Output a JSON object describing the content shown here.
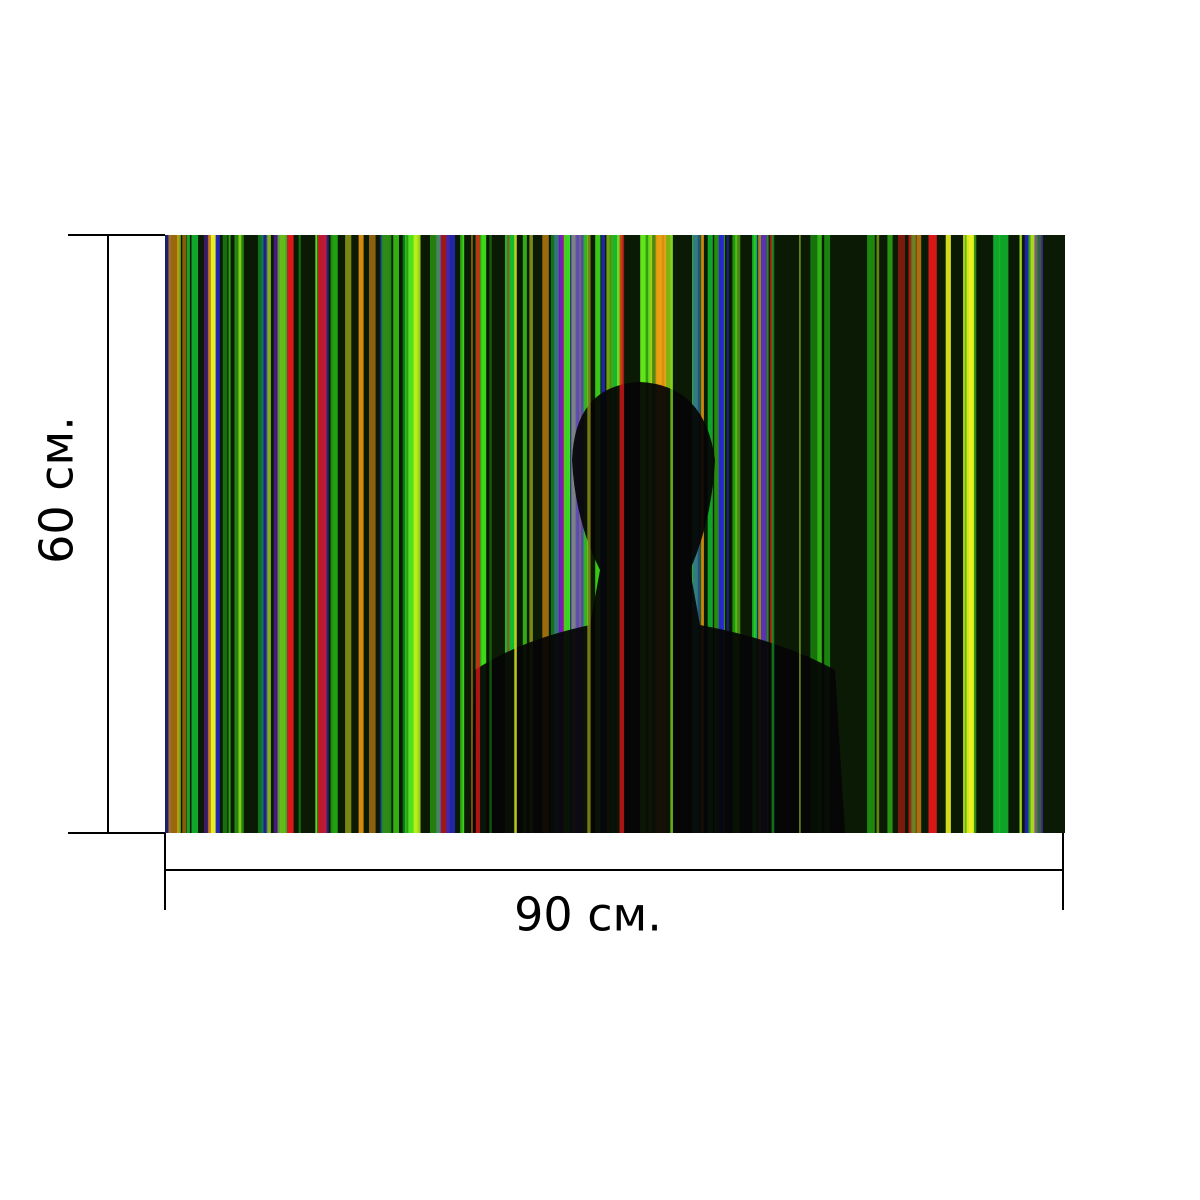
{
  "dimensions": {
    "height": "60 см.",
    "width": "90 см."
  }
}
